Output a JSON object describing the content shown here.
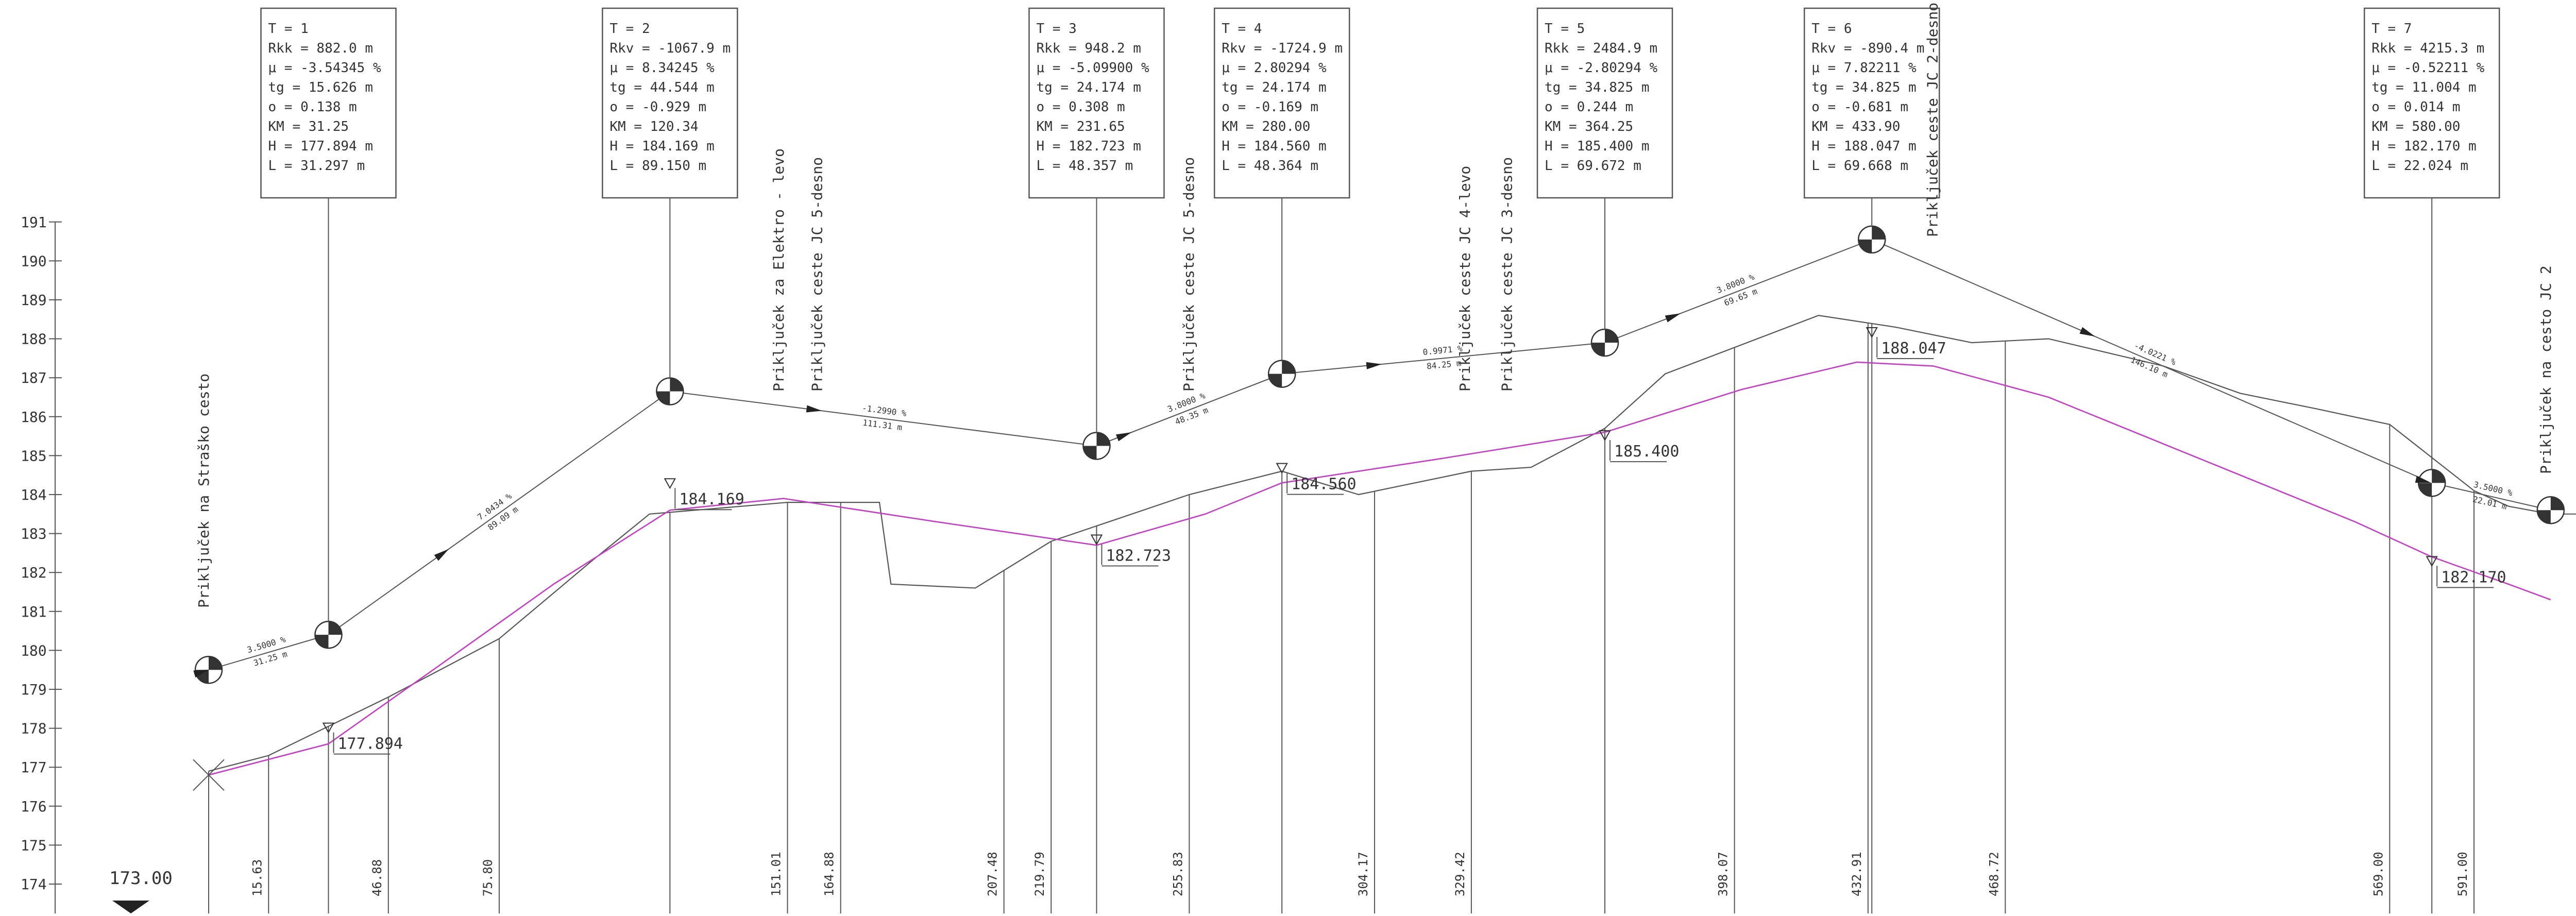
{
  "drawing": {
    "datum_label": "173.00",
    "y_axis": {
      "min": 174,
      "max": 191,
      "ticks": [
        "191",
        "190",
        "189",
        "188",
        "187",
        "186",
        "185",
        "184",
        "183",
        "182",
        "181",
        "180",
        "179",
        "178",
        "177",
        "176",
        "175",
        "174"
      ]
    },
    "colors": {
      "line": "#555555",
      "text": "#333333",
      "design_line": "#c53fc5"
    },
    "vertices": [
      {
        "km": 31.25,
        "elev": 180.4,
        "label_box": [
          "T = 1",
          "Rkk = 882.0 m",
          "μ = -3.54345 %",
          "tg = 15.626 m",
          "o = 0.138 m",
          "KM = 31.25",
          "H = 177.894 m",
          "L = 31.297 m"
        ]
      },
      {
        "km": 120.34,
        "elev": 186.65,
        "label_box": [
          "T = 2",
          "Rkv = -1067.9 m",
          "μ = 8.34245 %",
          "tg = 44.544 m",
          "o = -0.929 m",
          "KM = 120.34",
          "H = 184.169 m",
          "L = 89.150 m"
        ]
      },
      {
        "km": 231.65,
        "elev": 185.25,
        "label_box": [
          "T = 3",
          "Rkk = 948.2 m",
          "μ = -5.09900 %",
          "tg = 24.174 m",
          "o = 0.308 m",
          "KM = 231.65",
          "H = 182.723 m",
          "L = 48.357 m"
        ]
      },
      {
        "km": 280.0,
        "elev": 187.1,
        "label_box": [
          "T = 4",
          "Rkv = -1724.9 m",
          "μ = 2.80294 %",
          "tg = 24.174 m",
          "o = -0.169 m",
          "KM = 280.00",
          "H = 184.560 m",
          "L = 48.364 m"
        ]
      },
      {
        "km": 364.25,
        "elev": 187.9,
        "label_box": [
          "T = 5",
          "Rkk = 2484.9 m",
          "μ = -2.80294 %",
          "tg = 34.825 m",
          "o = 0.244 m",
          "KM = 364.25",
          "H = 185.400 m",
          "L = 69.672 m"
        ]
      },
      {
        "km": 433.9,
        "elev": 190.55,
        "label_box": [
          "T = 6",
          "Rkv = -890.4 m",
          "μ = 7.82211 %",
          "tg = 34.825 m",
          "o = -0.681 m",
          "KM = 433.90",
          "H = 188.047 m",
          "L = 69.668 m"
        ]
      },
      {
        "km": 580.0,
        "elev": 184.3,
        "label_box": [
          "T = 7",
          "Rkk = 4215.3 m",
          "μ = -0.52211 %",
          "tg = 11.004 m",
          "o = 0.014 m",
          "KM = 580.00",
          "H = 182.170 m",
          "L = 22.024 m"
        ]
      }
    ],
    "grade_labels": [
      {
        "grade": "3.5000 %",
        "length": "31.25 m"
      },
      {
        "grade": "7.0434 %",
        "length": "89.09 m"
      },
      {
        "grade": "-1.2990 %",
        "length": "111.31 m"
      },
      {
        "grade": "3.8000 %",
        "length": "48.35 m"
      },
      {
        "grade": "0.9971 %",
        "length": "84.25 m"
      },
      {
        "grade": "3.8000 %",
        "length": "69.65 m"
      },
      {
        "grade": "-4.0221 %",
        "length": "146.10 m"
      },
      {
        "grade": "3.5000 %",
        "length": "22.01 m"
      }
    ],
    "elevation_marks": [
      "177.894",
      "184.169",
      "182.723",
      "184.560",
      "185.400",
      "188.047",
      "182.170"
    ],
    "station_labels": [
      "15.63",
      "46.88",
      "75.80",
      "151.01",
      "164.88",
      "207.48",
      "219.79",
      "255.83",
      "304.17",
      "329.42",
      "398.07",
      "432.91",
      "468.72",
      "569.00",
      "591.00"
    ],
    "junctions": [
      {
        "km": 0,
        "label": "Priključek na Straško cesto"
      },
      {
        "km": 150,
        "label": "Priključek za Elektro - levo"
      },
      {
        "km": 160,
        "label": "Priključek ceste JC 5-desno"
      },
      {
        "km": 257,
        "label": "Priključek ceste JC 5-desno"
      },
      {
        "km": 329,
        "label": "Priključek ceste JC 4-levo"
      },
      {
        "km": 340,
        "label": "Priključek ceste JC 3-desno"
      },
      {
        "km": 451,
        "label": "Priključek ceste JC 2-desno"
      },
      {
        "km": 611,
        "label": "Priključek na cesto JC 2"
      }
    ],
    "terrain": [
      [
        0,
        176.9
      ],
      [
        15.63,
        177.3
      ],
      [
        46.88,
        178.8
      ],
      [
        75.8,
        180.3
      ],
      [
        100,
        182.3
      ],
      [
        115,
        183.5
      ],
      [
        151.01,
        183.8
      ],
      [
        175,
        183.8
      ],
      [
        178,
        181.7
      ],
      [
        200,
        181.6
      ],
      [
        219.79,
        182.8
      ],
      [
        255.83,
        184.0
      ],
      [
        280,
        184.6
      ],
      [
        300,
        184.0
      ],
      [
        329.42,
        184.6
      ],
      [
        345,
        184.7
      ],
      [
        364.25,
        185.7
      ],
      [
        380,
        187.1
      ],
      [
        420,
        188.6
      ],
      [
        440,
        188.3
      ],
      [
        460,
        187.9
      ],
      [
        480,
        188.0
      ],
      [
        510,
        187.3
      ],
      [
        530,
        186.6
      ],
      [
        550,
        186.2
      ],
      [
        569,
        185.8
      ],
      [
        591,
        184.1
      ],
      [
        600,
        183.7
      ],
      [
        611,
        183.5
      ]
    ],
    "design_line": [
      [
        0,
        176.8
      ],
      [
        31.25,
        177.6
      ],
      [
        60,
        179.6
      ],
      [
        90,
        181.7
      ],
      [
        120.34,
        183.6
      ],
      [
        150,
        183.9
      ],
      [
        190,
        183.3
      ],
      [
        231.65,
        182.7
      ],
      [
        260,
        183.5
      ],
      [
        280,
        184.3
      ],
      [
        320,
        184.9
      ],
      [
        364.25,
        185.6
      ],
      [
        400,
        186.7
      ],
      [
        430,
        187.4
      ],
      [
        450,
        187.3
      ],
      [
        480,
        186.5
      ],
      [
        520,
        184.9
      ],
      [
        560,
        183.3
      ],
      [
        580,
        182.4
      ],
      [
        600,
        181.7
      ],
      [
        611,
        181.3
      ]
    ]
  }
}
